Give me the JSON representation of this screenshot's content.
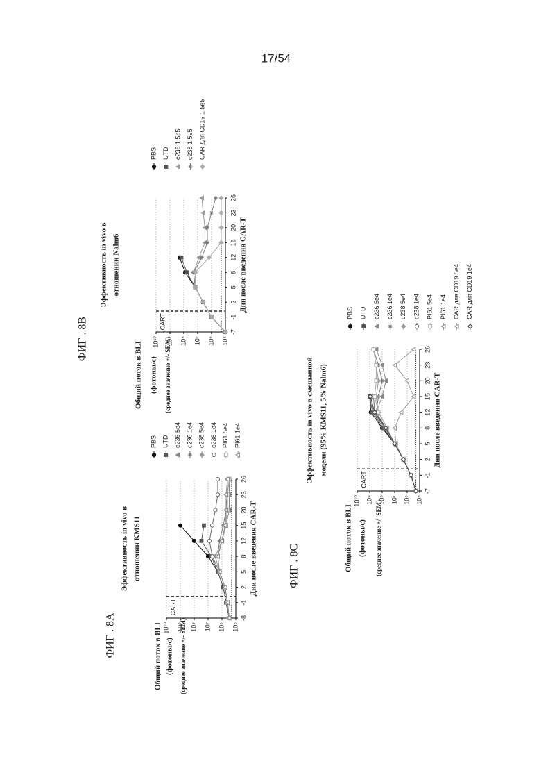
{
  "page_number": "17/54",
  "chart_data": [
    {
      "type": "line",
      "figure_label": "ФИГ . 8A",
      "title": [
        "Эффективность in vivo в",
        "отношении KMS11"
      ],
      "y_label": [
        "Общий поток в BLI",
        "(фотоны/с)",
        "(среднее значение +/- SEM)"
      ],
      "x_label": "Дни после введения CAR-T",
      "annotation": "CART",
      "log_scale": true,
      "grid": true,
      "limit_line": 200000,
      "categories": [
        "-8",
        "-1",
        "2",
        "5",
        "8",
        "12",
        "15",
        "20",
        "23",
        "26"
      ],
      "ylim": [
        100000,
        10000000000
      ],
      "yticks": [
        {
          "value": 100000,
          "label": "10⁵"
        },
        {
          "value": 1000000,
          "label": "10⁶"
        },
        {
          "value": 10000000,
          "label": "10⁷"
        },
        {
          "value": 100000000,
          "label": "10⁸"
        },
        {
          "value": 1000000000,
          "label": "10⁹"
        },
        {
          "value": 10000000000,
          "label": "10¹⁰"
        }
      ],
      "series": [
        {
          "name": "PBS",
          "color": "#111111",
          "values": [
            300000,
            500000,
            800000,
            2000000,
            10000000,
            100000000,
            1000000000,
            null,
            null,
            null
          ]
        },
        {
          "name": "UTD",
          "color": "#555555",
          "values": [
            300000,
            500000,
            800000,
            2000000,
            6000000,
            30000000,
            20000000,
            null,
            null,
            null
          ]
        },
        {
          "name": "c236 5e4",
          "color": "#888888",
          "values": [
            300000,
            400000,
            600000,
            1500000,
            2000000,
            1000000,
            500000,
            300000,
            300000,
            300000
          ]
        },
        {
          "name": "c236 1e4",
          "color": "#777777",
          "values": [
            300000,
            400000,
            600000,
            1500000,
            2000000,
            1500000,
            800000,
            500000,
            400000,
            400000
          ]
        },
        {
          "name": "c238 5e4",
          "color": "#999999",
          "values": [
            300000,
            400000,
            600000,
            1500000,
            3000000,
            1000000,
            600000,
            400000,
            400000,
            400000
          ]
        },
        {
          "name": "c238 1e4",
          "color": "#666666",
          "values": [
            300000,
            400000,
            600000,
            1500000,
            5000000,
            8000000,
            5000000,
            3000000,
            2000000,
            2000000
          ]
        },
        {
          "name": "PI61 5e4",
          "color": "#aaaaaa",
          "values": [
            300000,
            400000,
            600000,
            1500000,
            2000000,
            1000000,
            500000,
            400000,
            400000,
            300000
          ]
        },
        {
          "name": "PI61 1e4",
          "color": "#8a8a8a",
          "values": [
            300000,
            400000,
            600000,
            1500000,
            2000000,
            1000000,
            600000,
            500000,
            500000,
            400000
          ]
        }
      ]
    },
    {
      "type": "line",
      "figure_label": "ФИГ . 8B",
      "title": [
        "Эффективность in vivo в",
        "отношении Nalm6"
      ],
      "y_label": [
        "Общий поток в BLI",
        "(фотоны/с)",
        "(среднее значение +/- SEM)"
      ],
      "x_label": "Дни после введения CAR-T",
      "annotation": "CART",
      "log_scale": true,
      "grid": true,
      "limit_line": 200000,
      "categories": [
        "-7",
        "-1",
        "2",
        "5",
        "8",
        "12",
        "16",
        "20",
        "23",
        "26"
      ],
      "ylim": [
        100000,
        10000000000
      ],
      "yticks": [
        {
          "value": 100000,
          "label": "10⁵"
        },
        {
          "value": 1000000,
          "label": "10⁶"
        },
        {
          "value": 10000000,
          "label": "10⁷"
        },
        {
          "value": 100000000,
          "label": "10⁸"
        },
        {
          "value": 1000000000,
          "label": "10⁹"
        },
        {
          "value": 10000000000,
          "label": "10¹⁰"
        }
      ],
      "series": [
        {
          "name": "PBS",
          "color": "#111111",
          "values": [
            100000,
            1000000,
            4000000,
            15000000,
            80000000,
            200000000,
            null,
            null,
            null,
            null
          ]
        },
        {
          "name": "UTD",
          "color": "#555555",
          "values": [
            100000,
            1000000,
            4000000,
            15000000,
            60000000,
            150000000,
            null,
            null,
            null,
            null
          ]
        },
        {
          "name": "c236 1,5e5",
          "color": "#999999",
          "values": [
            100000,
            1000000,
            4000000,
            15000000,
            20000000,
            8000000,
            3000000,
            3000000,
            4000000,
            5000000
          ]
        },
        {
          "name": "c238 1,5e5",
          "color": "#777777",
          "values": [
            100000,
            1000000,
            4000000,
            15000000,
            20000000,
            5000000,
            2000000,
            2000000,
            1000000,
            500000
          ]
        },
        {
          "name": "CAR для CD19 1,5e5",
          "color": "#aaaaaa",
          "values": [
            100000,
            1000000,
            4000000,
            15000000,
            15000000,
            1500000,
            200000,
            200000,
            200000,
            200000
          ]
        }
      ]
    },
    {
      "type": "line",
      "figure_label": "ФИГ . 8C",
      "title": [
        "Эффективность in vivo в смешанной",
        "модели (95% KMS11, 5% Nalm6)"
      ],
      "y_label": [
        "Общий поток в BLI",
        "(фотоны/с)",
        "(среднее значение +/- SEM)"
      ],
      "x_label": "Дни после введения CAR-T",
      "annotation": "CART",
      "log_scale": true,
      "grid": true,
      "limit_line": 200000,
      "categories": [
        "-7",
        "-1",
        "2",
        "5",
        "8",
        "12",
        "15",
        "20",
        "23",
        "26"
      ],
      "ylim": [
        100000,
        10000000000
      ],
      "yticks": [
        {
          "value": 100000,
          "label": "10⁵"
        },
        {
          "value": 1000000,
          "label": "10⁶"
        },
        {
          "value": 10000000,
          "label": "10⁷"
        },
        {
          "value": 100000000,
          "label": "10⁸"
        },
        {
          "value": 1000000000,
          "label": "10⁹"
        },
        {
          "value": 10000000000,
          "label": "10¹⁰"
        }
      ],
      "series": [
        {
          "name": "PBS",
          "color": "#111111",
          "values": [
            200000,
            500000,
            2000000,
            10000000,
            100000000,
            800000000,
            1000000000,
            null,
            null,
            null
          ]
        },
        {
          "name": "UTD",
          "color": "#555555",
          "values": [
            200000,
            500000,
            2000000,
            10000000,
            80000000,
            600000000,
            1000000000,
            null,
            null,
            null
          ]
        },
        {
          "name": "c236 5e4",
          "color": "#888888",
          "values": [
            200000,
            500000,
            2000000,
            10000000,
            50000000,
            300000000,
            100000000,
            50000000,
            100000000,
            300000000
          ]
        },
        {
          "name": "c236 1e4",
          "color": "#777777",
          "values": [
            200000,
            500000,
            2000000,
            10000000,
            50000000,
            300000000,
            200000000,
            100000000,
            200000000,
            500000000
          ]
        },
        {
          "name": "c238 5e4",
          "color": "#999999",
          "values": [
            200000,
            500000,
            2000000,
            10000000,
            40000000,
            200000000,
            300000000,
            200000000,
            300000000,
            500000000
          ]
        },
        {
          "name": "c238 1e4",
          "color": "#666666",
          "values": [
            200000,
            500000,
            2000000,
            10000000,
            60000000,
            400000000,
            500000000,
            null,
            null,
            null
          ]
        },
        {
          "name": "PI61 5e4",
          "color": "#aaaaaa",
          "values": [
            200000,
            500000,
            2000000,
            10000000,
            40000000,
            200000000,
            400000000,
            300000000,
            300000000,
            500000000
          ]
        },
        {
          "name": "PI61 1e4",
          "color": "#8a8a8a",
          "values": [
            200000,
            500000,
            2000000,
            10000000,
            60000000,
            500000000,
            800000000,
            null,
            null,
            null
          ]
        },
        {
          "name": "CAR для CD19 5e4",
          "color": "#9a9a9a",
          "values": [
            200000,
            500000,
            2000000,
            8000000,
            10000000,
            3000000,
            300000,
            1000000,
            10000000,
            300000
          ]
        },
        {
          "name": "CAR для CD19 1e4",
          "color": "#444444",
          "values": [
            200000,
            500000,
            2000000,
            10000000,
            50000000,
            400000000,
            900000000,
            null,
            null,
            null
          ]
        }
      ]
    }
  ]
}
